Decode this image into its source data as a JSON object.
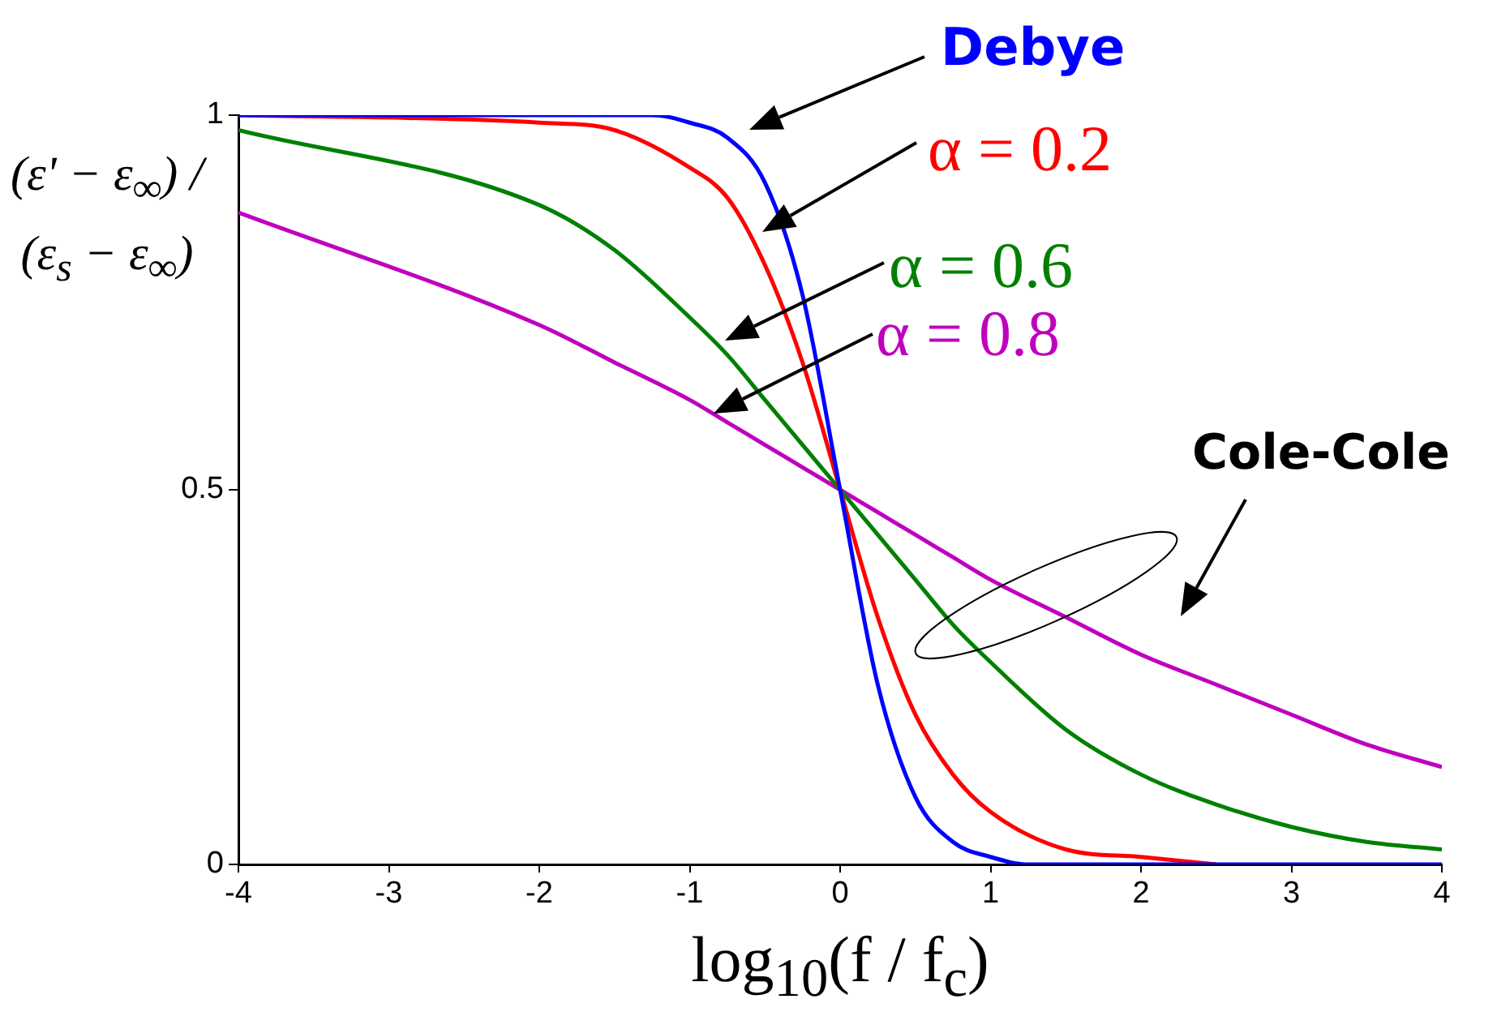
{
  "chart_data": {
    "type": "line",
    "xlabel": "log$_{10}$(f / f$_{c}$)",
    "ylabel": "(ε' − ε$_{∞}$) / (ε$_{s}$ − ε$_{∞}$)",
    "xlim": [
      -4,
      4
    ],
    "xticks": [
      -4,
      -3,
      -2,
      -1,
      0,
      1,
      2,
      3,
      4
    ],
    "ylim": [
      0,
      1
    ],
    "yticks": [
      0,
      0.5,
      1
    ],
    "grid": false,
    "legend": false,
    "marker": "none",
    "line_style": "solid",
    "annotations": [
      "Cole-Cole"
    ],
    "series": [
      {
        "name": "Debye",
        "color": "#0000ff",
        "x": [
          -4,
          -2,
          -1.5,
          -1.25,
          -1,
          -0.75,
          -0.5,
          -0.25,
          0,
          0.25,
          0.5,
          0.75,
          1,
          1.25,
          1.5,
          2,
          4
        ],
        "values": [
          1,
          1,
          1,
          1,
          0.99,
          0.97,
          0.91,
          0.76,
          0.5,
          0.24,
          0.09,
          0.03,
          0.01,
          0,
          0,
          0,
          0
        ]
      },
      {
        "name": "α = 0.2",
        "color": "#ff0000",
        "x": [
          -4,
          -2,
          -1.5,
          -1,
          -0.75,
          -0.5,
          -0.25,
          0,
          0.25,
          0.5,
          0.75,
          1,
          1.5,
          2,
          2.5
        ],
        "values": [
          1,
          0.99,
          0.98,
          0.93,
          0.89,
          0.8,
          0.67,
          0.5,
          0.33,
          0.2,
          0.12,
          0.07,
          0.02,
          0.01,
          0
        ]
      },
      {
        "name": "α = 0.6",
        "color": "#008000",
        "x": [
          -4,
          -2,
          -1.5,
          -1,
          -0.75,
          -0.5,
          -0.25,
          0,
          0.25,
          0.5,
          0.75,
          1,
          1.5,
          2,
          2.5,
          3,
          3.5,
          4
        ],
        "values": [
          0.98,
          0.88,
          0.82,
          0.73,
          0.68,
          0.62,
          0.56,
          0.5,
          0.44,
          0.38,
          0.32,
          0.27,
          0.18,
          0.12,
          0.08,
          0.05,
          0.03,
          0.02
        ]
      },
      {
        "name": "α = 0.8",
        "color": "#bf00bf",
        "x": [
          -4,
          -2,
          -1.5,
          -1,
          -0.75,
          -0.5,
          -0.25,
          0,
          0.25,
          0.5,
          0.75,
          1,
          1.5,
          2,
          2.5,
          3,
          3.5,
          4
        ],
        "values": [
          0.87,
          0.72,
          0.67,
          0.62,
          0.59,
          0.56,
          0.53,
          0.5,
          0.47,
          0.44,
          0.41,
          0.38,
          0.33,
          0.28,
          0.24,
          0.2,
          0.16,
          0.13
        ]
      }
    ]
  }
}
